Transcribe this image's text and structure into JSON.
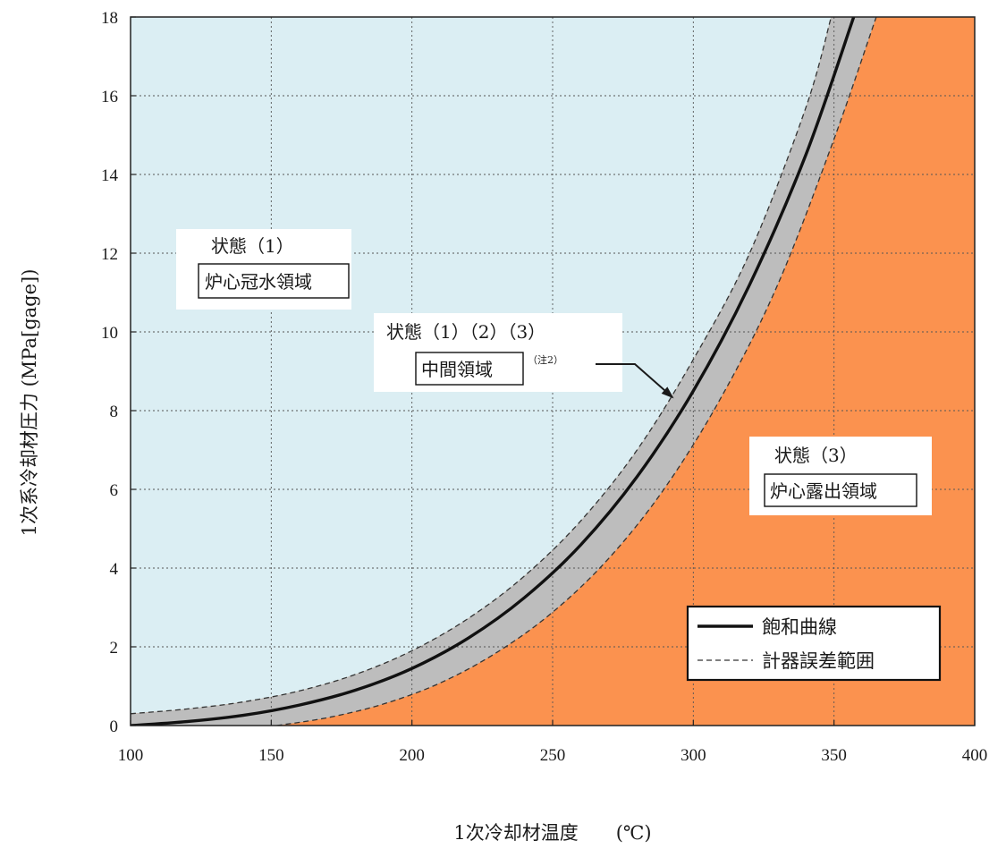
{
  "chart_data": {
    "type": "line",
    "xlabel": "1次冷却材温度　　(℃)",
    "ylabel": "1次系冷却材圧力 (MPa[gage])",
    "xlim": [
      100,
      400
    ],
    "ylim": [
      0,
      18
    ],
    "x_ticks": [
      100,
      150,
      200,
      250,
      300,
      350,
      400
    ],
    "y_ticks": [
      0,
      2,
      4,
      6,
      8,
      10,
      12,
      14,
      16,
      18
    ],
    "grid": true,
    "legend_position": "bottom-right",
    "legend": [
      {
        "label": "飽和曲線",
        "style": "solid"
      },
      {
        "label": "計器誤差範囲",
        "style": "dashed"
      }
    ],
    "series": [
      {
        "name": "飽和曲線",
        "style": "solid",
        "x": [
          100,
          120,
          140,
          160,
          180,
          200,
          220,
          240,
          260,
          280,
          300,
          320,
          340,
          357
        ],
        "y": [
          0.0,
          0.1,
          0.26,
          0.52,
          0.9,
          1.45,
          2.22,
          3.25,
          4.59,
          6.32,
          8.5,
          11.2,
          14.5,
          18.0
        ]
      },
      {
        "name": "計器誤差範囲 上限",
        "style": "dashed",
        "x": [
          100,
          120,
          140,
          160,
          180,
          200,
          220,
          240,
          260,
          280,
          300,
          320,
          340,
          349
        ],
        "y": [
          0.3,
          0.42,
          0.6,
          0.88,
          1.3,
          1.9,
          2.72,
          3.8,
          5.2,
          7.0,
          9.3,
          12.0,
          15.7,
          18.0
        ]
      },
      {
        "name": "計器誤差範囲 下限",
        "style": "dashed",
        "x": [
          152,
          170,
          190,
          210,
          230,
          250,
          270,
          290,
          310,
          330,
          350,
          365
        ],
        "y": [
          0.0,
          0.2,
          0.55,
          1.08,
          1.85,
          2.88,
          4.25,
          6.05,
          8.35,
          11.2,
          14.9,
          18.0
        ]
      }
    ],
    "regions": [
      {
        "title": "状態（1）",
        "label": "炉心冠水領域",
        "color": "#dbeef3"
      },
      {
        "title": "状態（1）（2）（3）",
        "label": "中間領域",
        "note": "（注2）",
        "color": "#c0c0c0"
      },
      {
        "title": "状態（3）",
        "label": "炉心露出領域",
        "color": "#fb924f"
      }
    ]
  }
}
